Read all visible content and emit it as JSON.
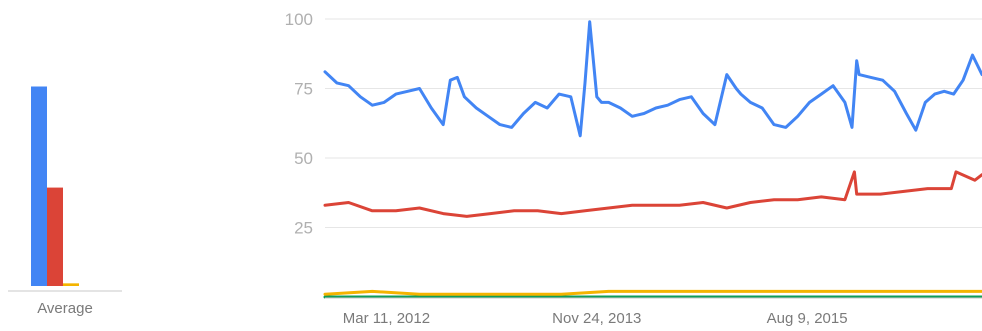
{
  "chart_data": [
    {
      "type": "bar",
      "categories": [
        "Average"
      ],
      "xlabel": "Average",
      "series": [
        {
          "color": "#4285f4",
          "values": [
            75
          ]
        },
        {
          "color": "#db4437",
          "values": [
            37
          ]
        },
        {
          "color": "#f4b400",
          "values": [
            1
          ]
        },
        {
          "color": "#0f9d58",
          "values": [
            0
          ]
        }
      ],
      "ylim": [
        0,
        100
      ]
    },
    {
      "type": "line",
      "ylim": [
        0,
        100
      ],
      "yticks": [
        "100",
        "75",
        "50",
        "25"
      ],
      "grid": true,
      "xticks": [
        "Mar 11, 2012",
        "Nov 24, 2013",
        "Aug 9, 2015"
      ],
      "x_start": "2011-09-11",
      "x_end": "2017-01-08",
      "series": [
        {
          "color": "#4285f4",
          "x": [
            "2011-09-11",
            "2011-10-16",
            "2011-11-20",
            "2011-12-25",
            "2012-01-29",
            "2012-03-04",
            "2012-04-08",
            "2012-05-13",
            "2012-06-17",
            "2012-07-22",
            "2012-08-26",
            "2012-09-16",
            "2012-10-07",
            "2012-10-28",
            "2012-12-02",
            "2013-01-06",
            "2013-02-10",
            "2013-03-17",
            "2013-04-21",
            "2013-05-26",
            "2013-06-30",
            "2013-08-04",
            "2013-09-08",
            "2013-10-06",
            "2013-10-20",
            "2013-11-03",
            "2013-11-24",
            "2013-12-08",
            "2013-12-29",
            "2014-02-02",
            "2014-03-09",
            "2014-04-13",
            "2014-05-18",
            "2014-06-22",
            "2014-07-27",
            "2014-08-31",
            "2014-10-05",
            "2014-11-09",
            "2014-12-14",
            "2015-01-11",
            "2015-01-25",
            "2015-02-22",
            "2015-03-29",
            "2015-05-03",
            "2015-06-07",
            "2015-07-12",
            "2015-08-16",
            "2015-09-20",
            "2015-10-25",
            "2015-11-29",
            "2015-12-20",
            "2016-01-03",
            "2016-01-10",
            "2016-02-14",
            "2016-03-20",
            "2016-04-24",
            "2016-05-29",
            "2016-06-26",
            "2016-07-24",
            "2016-08-21",
            "2016-09-18",
            "2016-10-16",
            "2016-11-13",
            "2016-12-11",
            "2017-01-08"
          ],
          "values": [
            81,
            77,
            76,
            72,
            69,
            70,
            73,
            74,
            75,
            68,
            62,
            78,
            79,
            72,
            68,
            65,
            62,
            61,
            66,
            70,
            68,
            73,
            72,
            58,
            77,
            99,
            72,
            70,
            70,
            68,
            65,
            66,
            68,
            69,
            71,
            72,
            66,
            62,
            80,
            75,
            73,
            70,
            68,
            62,
            61,
            65,
            70,
            73,
            76,
            70,
            61,
            85,
            80,
            79,
            78,
            74,
            66,
            60,
            70,
            73,
            74,
            73,
            78,
            87,
            80
          ]
        },
        {
          "color": "#db4437",
          "x": [
            "2011-09-11",
            "2011-11-20",
            "2012-01-29",
            "2012-04-08",
            "2012-06-17",
            "2012-08-26",
            "2012-11-04",
            "2013-01-13",
            "2013-03-24",
            "2013-06-02",
            "2013-08-11",
            "2013-10-20",
            "2013-12-29",
            "2014-03-09",
            "2014-05-18",
            "2014-07-27",
            "2014-10-05",
            "2014-12-14",
            "2015-02-22",
            "2015-05-03",
            "2015-07-12",
            "2015-09-20",
            "2015-11-29",
            "2015-12-27",
            "2016-01-03",
            "2016-03-13",
            "2016-05-22",
            "2016-07-31",
            "2016-10-09",
            "2016-10-23",
            "2016-12-18",
            "2017-01-08"
          ],
          "values": [
            33,
            34,
            31,
            31,
            32,
            30,
            29,
            30,
            31,
            31,
            30,
            31,
            32,
            33,
            33,
            33,
            34,
            32,
            34,
            35,
            35,
            36,
            35,
            45,
            37,
            37,
            38,
            39,
            39,
            45,
            42,
            44
          ]
        },
        {
          "color": "#f4b400",
          "x": [
            "2011-09-11",
            "2012-01-29",
            "2012-06-17",
            "2012-11-04",
            "2013-03-24",
            "2013-08-11",
            "2013-12-29",
            "2014-05-18",
            "2014-10-05",
            "2015-02-22",
            "2015-07-12",
            "2015-11-29",
            "2016-04-17",
            "2016-09-04",
            "2017-01-08"
          ],
          "values": [
            1,
            2,
            1,
            1,
            1,
            1,
            2,
            2,
            2,
            2,
            2,
            2,
            2,
            2,
            2
          ]
        },
        {
          "color": "#0f9d58",
          "x": [
            "2011-09-11",
            "2012-06-17",
            "2013-03-24",
            "2013-12-29",
            "2014-10-05",
            "2015-07-12",
            "2016-04-17",
            "2017-01-08"
          ],
          "values": [
            0,
            0,
            0,
            0,
            0,
            0,
            0,
            0
          ]
        }
      ]
    }
  ]
}
